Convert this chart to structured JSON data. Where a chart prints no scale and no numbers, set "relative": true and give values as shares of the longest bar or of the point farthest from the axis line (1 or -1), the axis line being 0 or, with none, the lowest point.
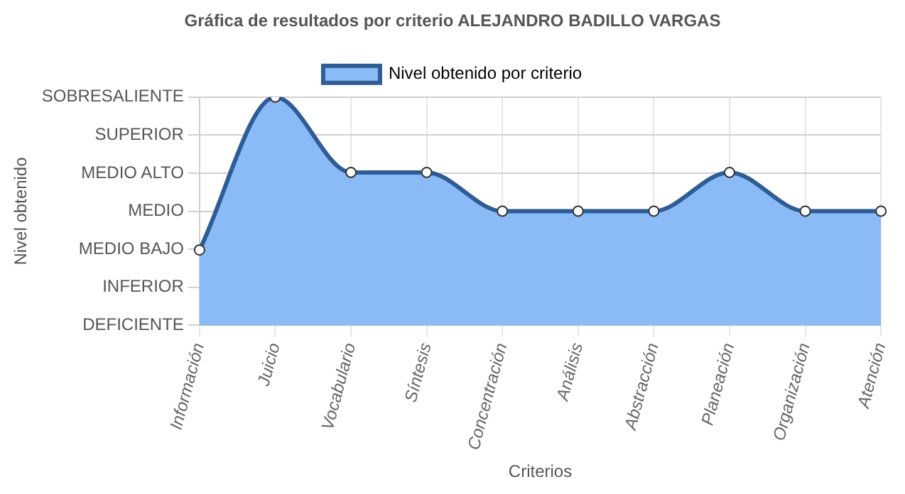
{
  "chart_data": {
    "type": "area",
    "title": "Gráfica de resultados por criterio ALEJANDRO BADILLO VARGAS",
    "xlabel": "Criterios",
    "categories": [
      "Información",
      "Juicio",
      "Vocabulario",
      "Síntesis",
      "Concentración",
      "Análisis",
      "Abstracción",
      "Planeación",
      "Organización",
      "Atención"
    ],
    "series": [
      {
        "name": "Nivel obtenido por criterio",
        "color": "#2e5c94",
        "values": [
          0.33,
          1,
          0.67,
          0.67,
          0.5,
          0.5,
          0.5,
          0.67,
          0.5,
          0.5
        ]
      }
    ],
    "relative": true,
    "annotations": [
      "Nivel obtenido",
      "DEFICIENTE",
      "INFERIOR",
      "MEDIO BAJO",
      "MEDIO",
      "MEDIO ALTO",
      "SUPERIOR",
      "SOBRESALIENTE"
    ],
    "grid": true,
    "legend": "top",
    "marker": "circle",
    "line_style": "solid"
  }
}
